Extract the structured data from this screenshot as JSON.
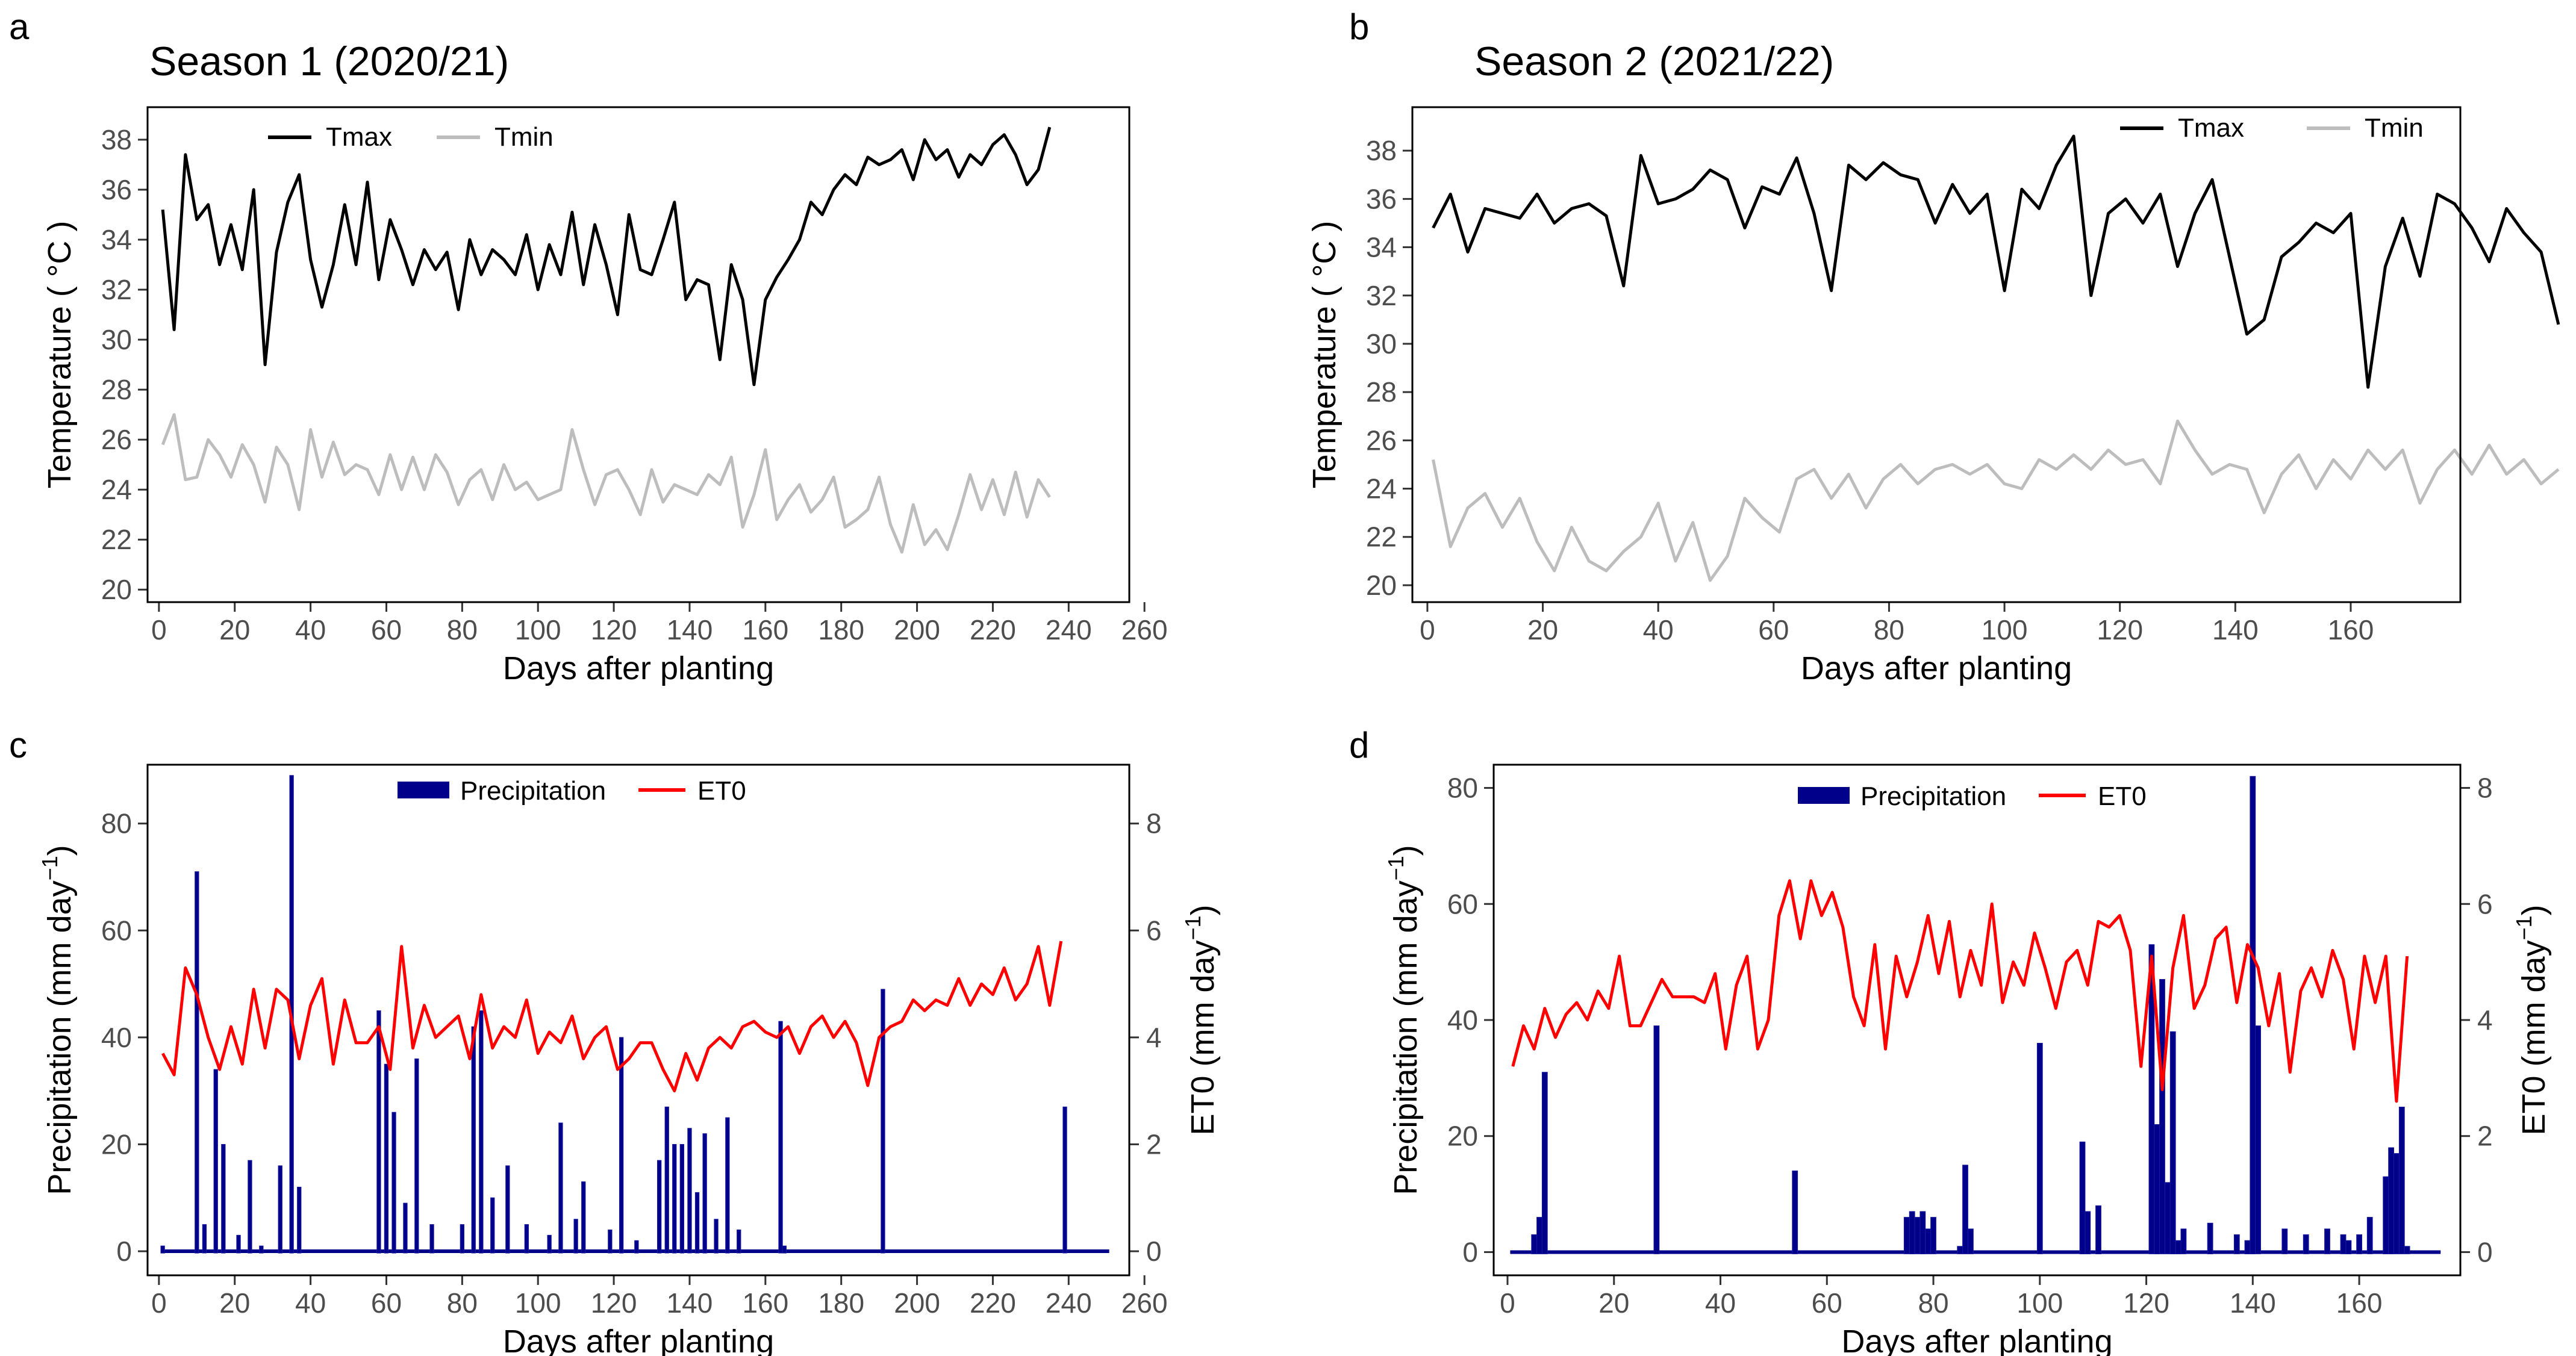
{
  "colors": {
    "tmax": "#000000",
    "tmin": "#bdbdbd",
    "precip": "#00008b",
    "et0": "#ff0000"
  },
  "chart_data": [
    {
      "letter": "a",
      "type": "line",
      "title": "Season 1 (2020/21)",
      "xlabel": "Days after planting",
      "ylabel": "Temperature ( °C )",
      "xlim": [
        -3,
        256
      ],
      "ylim": [
        19.5,
        39.3
      ],
      "xticks": [
        0,
        20,
        40,
        60,
        80,
        100,
        120,
        140,
        160,
        180,
        200,
        220,
        240,
        260
      ],
      "yticks": [
        20,
        22,
        24,
        26,
        28,
        30,
        32,
        34,
        36,
        38
      ],
      "legend_position": "top-left",
      "x_start": 1,
      "x_step": 3,
      "series": [
        {
          "name": "Tmax",
          "color": "#000000",
          "values": [
            35.2,
            30.4,
            37.4,
            34.8,
            35.4,
            33.0,
            34.6,
            32.8,
            36.0,
            29.0,
            33.5,
            35.5,
            36.6,
            33.2,
            31.3,
            33.0,
            35.4,
            33.0,
            36.3,
            32.4,
            34.8,
            33.6,
            32.2,
            33.6,
            32.8,
            33.5,
            31.2,
            34.0,
            32.6,
            33.6,
            33.2,
            32.6,
            34.2,
            32.0,
            33.8,
            32.6,
            35.1,
            32.2,
            34.6,
            33.0,
            31.0,
            35.0,
            32.8,
            32.6,
            34.0,
            35.5,
            31.6,
            32.4,
            32.2,
            29.2,
            33.0,
            31.6,
            28.2,
            31.6,
            32.5,
            33.2,
            34.0,
            35.5,
            35.0,
            36.0,
            36.6,
            36.2,
            37.3,
            37.0,
            37.2,
            37.6,
            36.4,
            38.0,
            37.2,
            37.6,
            36.5,
            37.4,
            37.0,
            37.8,
            38.2,
            37.4,
            36.2,
            36.8,
            38.5
          ]
        },
        {
          "name": "Tmin",
          "color": "#bdbdbd",
          "values": [
            25.8,
            27.0,
            24.4,
            24.5,
            26.0,
            25.4,
            24.5,
            25.8,
            25.0,
            23.5,
            25.7,
            25.0,
            23.2,
            26.4,
            24.5,
            25.9,
            24.6,
            25.0,
            24.8,
            23.8,
            25.4,
            24.0,
            25.3,
            24.0,
            25.4,
            24.7,
            23.4,
            24.4,
            24.8,
            23.6,
            25.0,
            24.0,
            24.3,
            23.6,
            23.8,
            24.0,
            26.4,
            24.8,
            23.4,
            24.6,
            24.8,
            24.0,
            23.0,
            24.8,
            23.5,
            24.2,
            24.0,
            23.8,
            24.6,
            24.2,
            25.3,
            22.5,
            23.8,
            25.6,
            22.8,
            23.6,
            24.2,
            23.1,
            23.6,
            24.5,
            22.5,
            22.8,
            23.2,
            24.5,
            22.6,
            21.5,
            23.4,
            21.8,
            22.4,
            21.6,
            23.0,
            24.6,
            23.2,
            24.4,
            23.0,
            24.7,
            22.9,
            24.4,
            23.7
          ]
        }
      ]
    },
    {
      "letter": "b",
      "type": "line",
      "title": "Season 2 (2021/22)",
      "xlabel": "Days after planting",
      "ylabel": "Temperature ( °C )",
      "xlim": [
        -2.6,
        179
      ],
      "ylim": [
        19.3,
        39.8
      ],
      "xticks": [
        0,
        20,
        40,
        60,
        80,
        100,
        120,
        140,
        160
      ],
      "yticks": [
        20,
        22,
        24,
        26,
        28,
        30,
        32,
        34,
        36,
        38
      ],
      "legend_position": "top-right",
      "x_start": 1,
      "x_step": 3,
      "series": [
        {
          "name": "Tmax",
          "color": "#000000",
          "values": [
            34.8,
            36.2,
            33.8,
            35.6,
            35.4,
            35.2,
            36.2,
            35.0,
            35.6,
            35.8,
            35.3,
            32.4,
            37.8,
            35.8,
            36.0,
            36.4,
            37.2,
            36.8,
            34.8,
            36.5,
            36.2,
            37.7,
            35.4,
            32.2,
            37.4,
            36.8,
            37.5,
            37.0,
            36.8,
            35.0,
            36.6,
            35.4,
            36.2,
            32.2,
            36.4,
            35.6,
            37.4,
            38.6,
            32.0,
            35.4,
            36.0,
            35.0,
            36.2,
            33.2,
            35.4,
            36.8,
            33.6,
            30.4,
            31.0,
            33.6,
            34.2,
            35.0,
            34.6,
            35.4,
            28.2,
            33.2,
            35.2,
            32.8,
            36.2,
            35.8,
            34.8,
            33.4,
            35.6,
            34.6,
            33.8,
            30.8
          ]
        },
        {
          "name": "Tmin",
          "color": "#bdbdbd",
          "values": [
            25.2,
            21.6,
            23.2,
            23.8,
            22.4,
            23.6,
            21.8,
            20.6,
            22.4,
            21.0,
            20.6,
            21.4,
            22.0,
            23.4,
            21.0,
            22.6,
            20.2,
            21.2,
            23.6,
            22.8,
            22.2,
            24.4,
            24.8,
            23.6,
            24.6,
            23.2,
            24.4,
            25.0,
            24.2,
            24.8,
            25.0,
            24.6,
            25.0,
            24.2,
            24.0,
            25.2,
            24.8,
            25.4,
            24.8,
            25.6,
            25.0,
            25.2,
            24.2,
            26.8,
            25.6,
            24.6,
            25.0,
            24.8,
            23.0,
            24.6,
            25.4,
            24.0,
            25.2,
            24.4,
            25.6,
            24.8,
            25.6,
            23.4,
            24.8,
            25.6,
            24.6,
            25.8,
            24.6,
            25.2,
            24.2,
            24.8
          ]
        }
      ]
    },
    {
      "letter": "c",
      "type": "bar",
      "title": "",
      "xlabel": "Days after planting",
      "ylabel": "Precipitation (mm day",
      "y2label": "ET0  (mm day",
      "xlim": [
        -3,
        256
      ],
      "ylim": [
        -4.5,
        91
      ],
      "y2lim": [
        -0.45,
        9.1
      ],
      "xticks": [
        0,
        20,
        40,
        60,
        80,
        100,
        120,
        140,
        160,
        180,
        200,
        220,
        240,
        260
      ],
      "yticks": [
        0,
        20,
        40,
        60,
        80
      ],
      "y2ticks": [
        0,
        2,
        4,
        6,
        8
      ],
      "legend_position": "top-center",
      "legend_labels": [
        "Precipitation",
        "ET0"
      ],
      "bars": {
        "name": "Precipitation",
        "color": "#00008b",
        "x": [
          1,
          10,
          12,
          15,
          17,
          21,
          24,
          27,
          32,
          35,
          37,
          58,
          60,
          62,
          65,
          68,
          72,
          80,
          83,
          85,
          88,
          92,
          97,
          103,
          106,
          110,
          112,
          119,
          122,
          126,
          132,
          134,
          136,
          138,
          140,
          142,
          144,
          147,
          150,
          153,
          164,
          165,
          191,
          239
        ],
        "values": [
          1,
          71,
          5,
          34,
          20,
          3,
          17,
          1,
          16,
          89,
          12,
          45,
          35,
          26,
          9,
          36,
          5,
          5,
          42,
          45,
          10,
          16,
          5,
          3,
          24,
          6,
          13,
          4,
          40,
          2,
          17,
          27,
          20,
          20,
          23,
          11,
          22,
          6,
          25,
          4,
          43,
          1,
          49,
          27
        ]
      },
      "line": {
        "name": "ET0",
        "color": "#ff0000",
        "x_start": 1,
        "x_step": 3,
        "values": [
          3.7,
          3.3,
          5.3,
          4.8,
          4.0,
          3.4,
          4.2,
          3.5,
          4.9,
          3.8,
          4.9,
          4.7,
          3.6,
          4.6,
          5.1,
          3.5,
          4.7,
          3.9,
          3.9,
          4.2,
          3.4,
          5.7,
          3.8,
          4.6,
          4.0,
          4.2,
          4.4,
          3.6,
          4.8,
          3.8,
          4.2,
          4.0,
          4.7,
          3.7,
          4.1,
          3.9,
          4.4,
          3.6,
          4.0,
          4.2,
          3.4,
          3.6,
          3.9,
          3.9,
          3.4,
          3.0,
          3.7,
          3.2,
          3.8,
          4.0,
          3.8,
          4.2,
          4.3,
          4.1,
          4.0,
          4.2,
          3.7,
          4.2,
          4.4,
          4.0,
          4.3,
          3.9,
          3.1,
          4.0,
          4.2,
          4.3,
          4.7,
          4.5,
          4.7,
          4.6,
          5.1,
          4.6,
          5.0,
          4.8,
          5.3,
          4.7,
          5.0,
          5.7,
          4.6,
          5.8
        ]
      }
    },
    {
      "letter": "d",
      "type": "bar",
      "title": "",
      "xlabel": "Days after planting",
      "ylabel": "Precipitation (mm day",
      "y2label": "ET0  (mm day",
      "xlim": [
        -2.6,
        179
      ],
      "ylim": [
        -4,
        84
      ],
      "y2lim": [
        -0.4,
        8.4
      ],
      "xticks": [
        0,
        20,
        40,
        60,
        80,
        100,
        120,
        140,
        160
      ],
      "yticks": [
        0,
        20,
        40,
        60,
        80
      ],
      "y2ticks": [
        0,
        2,
        4,
        6,
        8
      ],
      "legend_position": "top-center",
      "legend_labels": [
        "Precipitation",
        "ET0"
      ],
      "bars": {
        "name": "Precipitation",
        "color": "#00008b",
        "x": [
          5,
          6,
          7,
          28,
          54,
          75,
          76,
          77,
          78,
          79,
          80,
          85,
          86,
          87,
          100,
          108,
          109,
          111,
          121,
          122,
          123,
          124,
          125,
          126,
          127,
          132,
          137,
          139,
          140,
          141,
          146,
          150,
          154,
          157,
          158,
          160,
          162,
          165,
          166,
          167,
          168,
          169
        ],
        "values": [
          3,
          6,
          31,
          39,
          14,
          6,
          7,
          6,
          7,
          4,
          6,
          1,
          15,
          4,
          36,
          19,
          7,
          8,
          53,
          22,
          47,
          12,
          38,
          2,
          4,
          5,
          3,
          2,
          82,
          39,
          4,
          3,
          4,
          3,
          2,
          3,
          6,
          13,
          18,
          17,
          25,
          1
        ]
      },
      "line": {
        "name": "ET0",
        "color": "#ff0000",
        "x_start": 1,
        "x_step": 2,
        "values": [
          3.2,
          3.9,
          3.5,
          4.2,
          3.7,
          4.1,
          4.3,
          4.0,
          4.5,
          4.2,
          5.1,
          3.9,
          3.9,
          4.3,
          4.7,
          4.4,
          4.4,
          4.4,
          4.3,
          4.8,
          3.5,
          4.6,
          5.1,
          3.5,
          4.0,
          5.8,
          6.4,
          5.4,
          6.4,
          5.8,
          6.2,
          5.6,
          4.4,
          3.9,
          5.3,
          3.5,
          5.1,
          4.4,
          5.0,
          5.8,
          4.8,
          5.7,
          4.4,
          5.2,
          4.6,
          6.0,
          4.3,
          5.0,
          4.6,
          5.5,
          4.9,
          4.2,
          5.0,
          5.2,
          4.6,
          5.7,
          5.6,
          5.8,
          5.2,
          3.2,
          5.1,
          2.8,
          4.9,
          5.8,
          4.2,
          4.6,
          5.4,
          5.6,
          4.3,
          5.3,
          4.9,
          3.9,
          4.8,
          3.1,
          4.5,
          4.9,
          4.4,
          5.2,
          4.7,
          3.5,
          5.1,
          4.3,
          5.1,
          2.6,
          5.1
        ]
      }
    }
  ]
}
